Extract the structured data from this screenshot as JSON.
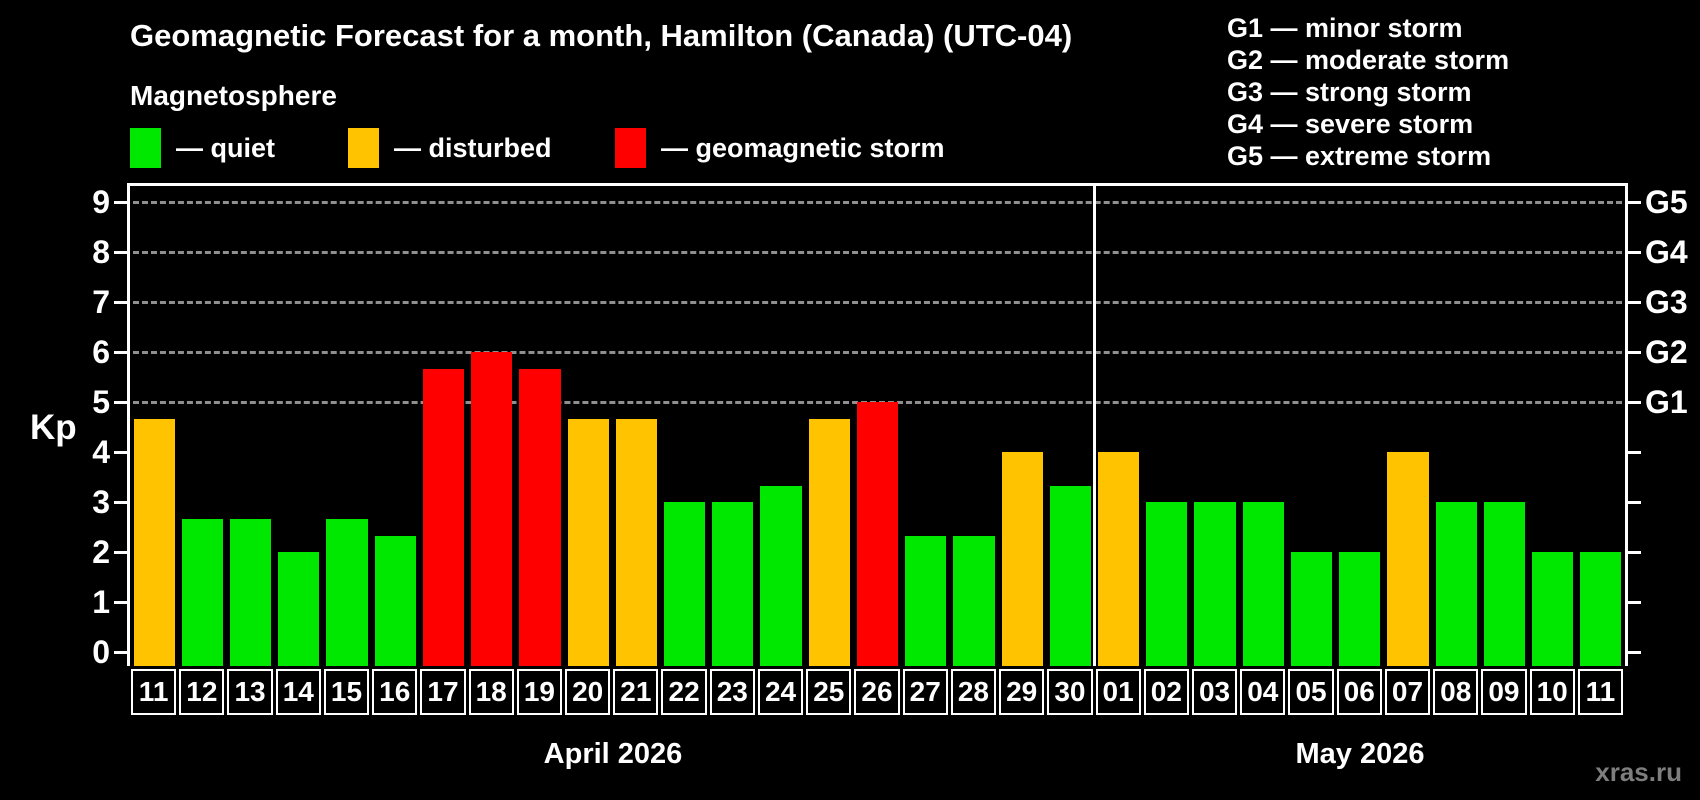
{
  "header": {
    "title": "Geomagnetic Forecast for a month, Hamilton (Canada) (UTC-04)",
    "subtitle": "Magnetosphere",
    "legend": [
      {
        "status": "quiet",
        "label": "— quiet"
      },
      {
        "status": "disturbed",
        "label": "— disturbed"
      },
      {
        "status": "storm",
        "label": "— geomagnetic storm"
      }
    ],
    "g_scale_legend": [
      "G1 — minor storm",
      "G2 — moderate storm",
      "G3 — strong storm",
      "G4 — severe storm",
      "G5 — extreme storm"
    ]
  },
  "colors": {
    "quiet": "#00e800",
    "disturbed": "#ffc300",
    "storm": "#ff0000",
    "grid": "#a8a8a8",
    "frame": "#ffffff",
    "watermark_text": "#7e7e7e"
  },
  "chart_data": {
    "type": "bar",
    "ylabel": "Kp",
    "ylim": [
      0,
      9
    ],
    "y_ticks": [
      0,
      1,
      2,
      3,
      4,
      5,
      6,
      7,
      8,
      9
    ],
    "grid_levels": [
      5,
      6,
      7,
      8,
      9
    ],
    "grid_style": "dashed",
    "right_axis_labels": [
      {
        "label": "G1",
        "value": 5
      },
      {
        "label": "G2",
        "value": 6
      },
      {
        "label": "G3",
        "value": 7
      },
      {
        "label": "G4",
        "value": 8
      },
      {
        "label": "G5",
        "value": 9
      }
    ],
    "months": [
      {
        "label": "April 2026",
        "days": [
          {
            "day": "11",
            "kp": 4.67,
            "status": "disturbed"
          },
          {
            "day": "12",
            "kp": 2.67,
            "status": "quiet"
          },
          {
            "day": "13",
            "kp": 2.67,
            "status": "quiet"
          },
          {
            "day": "14",
            "kp": 2.0,
            "status": "quiet"
          },
          {
            "day": "15",
            "kp": 2.67,
            "status": "quiet"
          },
          {
            "day": "16",
            "kp": 2.33,
            "status": "quiet"
          },
          {
            "day": "17",
            "kp": 5.67,
            "status": "storm"
          },
          {
            "day": "18",
            "kp": 6.0,
            "status": "storm"
          },
          {
            "day": "19",
            "kp": 5.67,
            "status": "storm"
          },
          {
            "day": "20",
            "kp": 4.67,
            "status": "disturbed"
          },
          {
            "day": "21",
            "kp": 4.67,
            "status": "disturbed"
          },
          {
            "day": "22",
            "kp": 3.0,
            "status": "quiet"
          },
          {
            "day": "23",
            "kp": 3.0,
            "status": "quiet"
          },
          {
            "day": "24",
            "kp": 3.33,
            "status": "quiet"
          },
          {
            "day": "25",
            "kp": 4.67,
            "status": "disturbed"
          },
          {
            "day": "26",
            "kp": 5.0,
            "status": "storm"
          },
          {
            "day": "27",
            "kp": 2.33,
            "status": "quiet"
          },
          {
            "day": "28",
            "kp": 2.33,
            "status": "quiet"
          },
          {
            "day": "29",
            "kp": 4.0,
            "status": "disturbed"
          },
          {
            "day": "30",
            "kp": 3.33,
            "status": "quiet"
          }
        ]
      },
      {
        "label": "May 2026",
        "days": [
          {
            "day": "01",
            "kp": 4.0,
            "status": "disturbed"
          },
          {
            "day": "02",
            "kp": 3.0,
            "status": "quiet"
          },
          {
            "day": "03",
            "kp": 3.0,
            "status": "quiet"
          },
          {
            "day": "04",
            "kp": 3.0,
            "status": "quiet"
          },
          {
            "day": "05",
            "kp": 2.0,
            "status": "quiet"
          },
          {
            "day": "06",
            "kp": 2.0,
            "status": "quiet"
          },
          {
            "day": "07",
            "kp": 4.0,
            "status": "disturbed"
          },
          {
            "day": "08",
            "kp": 3.0,
            "status": "quiet"
          },
          {
            "day": "09",
            "kp": 3.0,
            "status": "quiet"
          },
          {
            "day": "10",
            "kp": 2.0,
            "status": "quiet"
          },
          {
            "day": "11",
            "kp": 2.0,
            "status": "quiet"
          }
        ]
      }
    ]
  },
  "watermark": "xras.ru"
}
